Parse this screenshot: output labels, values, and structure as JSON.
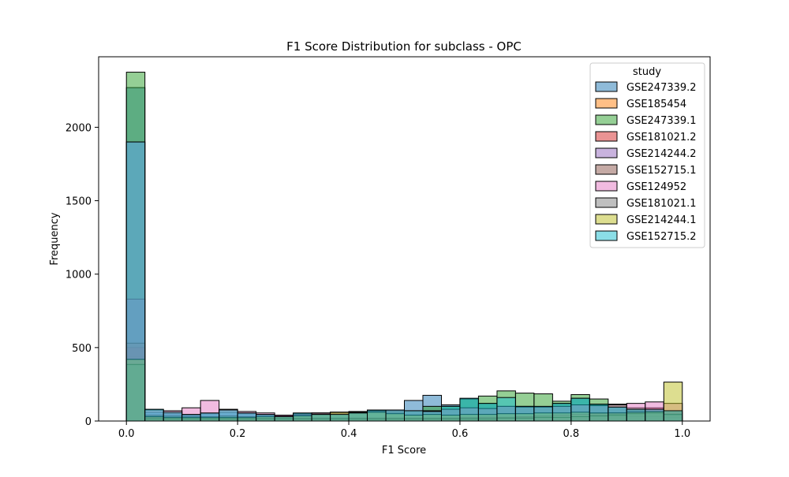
{
  "chart_data": {
    "type": "bar",
    "title": "F1 Score Distribution for subclass - OPC",
    "xlabel": "F1 Score",
    "ylabel": "Frequency",
    "xlim": [
      -0.05,
      1.05
    ],
    "ylim": [
      0,
      2480
    ],
    "x_ticks": [
      0.0,
      0.2,
      0.4,
      0.6,
      0.8,
      1.0
    ],
    "x_tick_labels": [
      "0.0",
      "0.2",
      "0.4",
      "0.6",
      "0.8",
      "1.0"
    ],
    "y_ticks": [
      0,
      500,
      1000,
      1500,
      2000
    ],
    "y_tick_labels": [
      "0",
      "500",
      "1000",
      "1500",
      "2000"
    ],
    "grid": false,
    "bin_edges": [
      0.0,
      0.0333,
      0.0667,
      0.1,
      0.1333,
      0.1667,
      0.2,
      0.2333,
      0.2667,
      0.3,
      0.3333,
      0.3667,
      0.4,
      0.4333,
      0.4667,
      0.5,
      0.5333,
      0.5667,
      0.6,
      0.6333,
      0.6667,
      0.7,
      0.7333,
      0.7667,
      0.8,
      0.8333,
      0.8667,
      0.9,
      0.9333,
      0.9667,
      1.0
    ],
    "legend": {
      "title": "study",
      "position": "top-right"
    },
    "series": [
      {
        "name": "GSE247339.2",
        "color": "#1f77b4",
        "values": [
          2270,
          60,
          50,
          40,
          50,
          60,
          50,
          40,
          35,
          45,
          50,
          55,
          60,
          65,
          60,
          140,
          175,
          110,
          150,
          120,
          100,
          100,
          95,
          120,
          155,
          110,
          95,
          70,
          60,
          50
        ]
      },
      {
        "name": "GSE185454",
        "color": "#ff7f0e",
        "values": [
          440,
          20,
          15,
          15,
          15,
          15,
          15,
          15,
          15,
          15,
          15,
          15,
          15,
          15,
          15,
          15,
          15,
          15,
          15,
          15,
          20,
          20,
          20,
          20,
          25,
          25,
          30,
          35,
          40,
          50
        ]
      },
      {
        "name": "GSE247339.1",
        "color": "#2ca02c",
        "values": [
          2375,
          40,
          35,
          30,
          30,
          35,
          30,
          30,
          30,
          40,
          55,
          60,
          65,
          75,
          70,
          70,
          100,
          100,
          150,
          170,
          205,
          190,
          185,
          135,
          180,
          150,
          115,
          90,
          60,
          40
        ]
      },
      {
        "name": "GSE181021.2",
        "color": "#d62728",
        "values": [
          500,
          20,
          15,
          15,
          15,
          15,
          15,
          15,
          15,
          15,
          15,
          15,
          15,
          15,
          15,
          15,
          15,
          15,
          15,
          20,
          20,
          20,
          25,
          25,
          30,
          40,
          45,
          60,
          90,
          60
        ]
      },
      {
        "name": "GSE214244.2",
        "color": "#9467bd",
        "values": [
          830,
          30,
          25,
          20,
          20,
          20,
          20,
          20,
          20,
          20,
          20,
          20,
          20,
          20,
          20,
          20,
          20,
          20,
          25,
          25,
          25,
          25,
          25,
          25,
          30,
          30,
          30,
          30,
          30,
          25
        ]
      },
      {
        "name": "GSE152715.1",
        "color": "#8c564b",
        "values": [
          530,
          25,
          20,
          20,
          20,
          20,
          20,
          20,
          20,
          20,
          20,
          20,
          20,
          20,
          20,
          20,
          20,
          20,
          20,
          25,
          25,
          30,
          35,
          40,
          45,
          50,
          55,
          60,
          60,
          40
        ]
      },
      {
        "name": "GSE124952",
        "color": "#e377c2",
        "values": [
          1900,
          75,
          70,
          90,
          140,
          80,
          65,
          55,
          40,
          50,
          55,
          60,
          60,
          70,
          75,
          70,
          70,
          80,
          90,
          85,
          100,
          95,
          95,
          100,
          110,
          105,
          110,
          120,
          130,
          120
        ]
      },
      {
        "name": "GSE181021.1",
        "color": "#7f7f7f",
        "values": [
          385,
          15,
          15,
          15,
          15,
          15,
          15,
          15,
          15,
          15,
          15,
          15,
          15,
          15,
          15,
          15,
          15,
          15,
          15,
          15,
          20,
          20,
          25,
          25,
          30,
          35,
          40,
          50,
          55,
          45
        ]
      },
      {
        "name": "GSE214244.1",
        "color": "#bcbd22",
        "values": [
          420,
          30,
          25,
          25,
          25,
          25,
          25,
          30,
          30,
          35,
          45,
          60,
          55,
          60,
          50,
          40,
          45,
          40,
          45,
          45,
          50,
          50,
          55,
          55,
          60,
          55,
          55,
          60,
          65,
          265
        ]
      },
      {
        "name": "GSE152715.2",
        "color": "#17becf",
        "values": [
          1900,
          80,
          60,
          45,
          55,
          75,
          55,
          45,
          30,
          55,
          45,
          45,
          55,
          75,
          75,
          70,
          65,
          100,
          155,
          120,
          160,
          100,
          100,
          120,
          155,
          115,
          95,
          80,
          80,
          70
        ]
      }
    ]
  }
}
